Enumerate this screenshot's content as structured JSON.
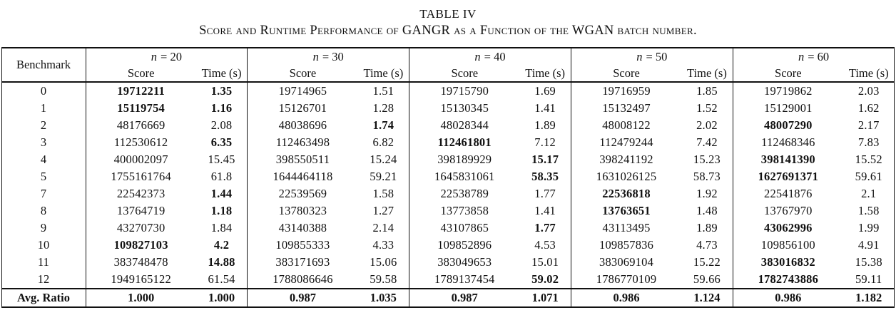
{
  "title": {
    "line1": "TABLE IV",
    "line2": "Score and Runtime Performance of GANGR as a Function of the WGAN batch number."
  },
  "table": {
    "benchmark_header": "Benchmark",
    "score_header": "Score",
    "time_header": "Time (s)",
    "groups": [
      {
        "var": "n",
        "eq": "= 20"
      },
      {
        "var": "n",
        "eq": "= 30"
      },
      {
        "var": "n",
        "eq": "= 40"
      },
      {
        "var": "n",
        "eq": "= 50"
      },
      {
        "var": "n",
        "eq": "= 60"
      }
    ],
    "rows": [
      {
        "benchmark": "0",
        "cells": [
          {
            "v": "19712211",
            "b": true
          },
          {
            "v": "1.35",
            "b": true
          },
          {
            "v": "19714965"
          },
          {
            "v": "1.51"
          },
          {
            "v": "19715790"
          },
          {
            "v": "1.69"
          },
          {
            "v": "19716959"
          },
          {
            "v": "1.85"
          },
          {
            "v": "19719862"
          },
          {
            "v": "2.03"
          }
        ]
      },
      {
        "benchmark": "1",
        "cells": [
          {
            "v": "15119754",
            "b": true
          },
          {
            "v": "1.16",
            "b": true
          },
          {
            "v": "15126701"
          },
          {
            "v": "1.28"
          },
          {
            "v": "15130345"
          },
          {
            "v": "1.41"
          },
          {
            "v": "15132497"
          },
          {
            "v": "1.52"
          },
          {
            "v": "15129001"
          },
          {
            "v": "1.62"
          }
        ]
      },
      {
        "benchmark": "2",
        "cells": [
          {
            "v": "48176669"
          },
          {
            "v": "2.08"
          },
          {
            "v": "48038696"
          },
          {
            "v": "1.74",
            "b": true
          },
          {
            "v": "48028344"
          },
          {
            "v": "1.89"
          },
          {
            "v": "48008122"
          },
          {
            "v": "2.02"
          },
          {
            "v": "48007290",
            "b": true
          },
          {
            "v": "2.17"
          }
        ]
      },
      {
        "benchmark": "3",
        "cells": [
          {
            "v": "112530612"
          },
          {
            "v": "6.35",
            "b": true
          },
          {
            "v": "112463498"
          },
          {
            "v": "6.82"
          },
          {
            "v": "112461801",
            "b": true
          },
          {
            "v": "7.12"
          },
          {
            "v": "112479244"
          },
          {
            "v": "7.42"
          },
          {
            "v": "112468346"
          },
          {
            "v": "7.83"
          }
        ]
      },
      {
        "benchmark": "4",
        "cells": [
          {
            "v": "400002097"
          },
          {
            "v": "15.45"
          },
          {
            "v": "398550511"
          },
          {
            "v": "15.24"
          },
          {
            "v": "398189929"
          },
          {
            "v": "15.17",
            "b": true
          },
          {
            "v": "398241192"
          },
          {
            "v": "15.23"
          },
          {
            "v": "398141390",
            "b": true
          },
          {
            "v": "15.52"
          }
        ]
      },
      {
        "benchmark": "5",
        "cells": [
          {
            "v": "1755161764"
          },
          {
            "v": "61.8"
          },
          {
            "v": "1644464118"
          },
          {
            "v": "59.21"
          },
          {
            "v": "1645831061"
          },
          {
            "v": "58.35",
            "b": true
          },
          {
            "v": "1631026125"
          },
          {
            "v": "58.73"
          },
          {
            "v": "1627691371",
            "b": true
          },
          {
            "v": "59.61"
          }
        ]
      },
      {
        "benchmark": "7",
        "cells": [
          {
            "v": "22542373"
          },
          {
            "v": "1.44",
            "b": true
          },
          {
            "v": "22539569"
          },
          {
            "v": "1.58"
          },
          {
            "v": "22538789"
          },
          {
            "v": "1.77"
          },
          {
            "v": "22536818",
            "b": true
          },
          {
            "v": "1.92"
          },
          {
            "v": "22541876"
          },
          {
            "v": "2.1"
          }
        ]
      },
      {
        "benchmark": "8",
        "cells": [
          {
            "v": "13764719"
          },
          {
            "v": "1.18",
            "b": true
          },
          {
            "v": "13780323"
          },
          {
            "v": "1.27"
          },
          {
            "v": "13773858"
          },
          {
            "v": "1.41"
          },
          {
            "v": "13763651",
            "b": true
          },
          {
            "v": "1.48"
          },
          {
            "v": "13767970"
          },
          {
            "v": "1.58"
          }
        ]
      },
      {
        "benchmark": "9",
        "cells": [
          {
            "v": "43270730"
          },
          {
            "v": "1.84"
          },
          {
            "v": "43140388"
          },
          {
            "v": "2.14"
          },
          {
            "v": "43107865"
          },
          {
            "v": "1.77",
            "b": true
          },
          {
            "v": "43113495"
          },
          {
            "v": "1.89"
          },
          {
            "v": "43062996",
            "b": true
          },
          {
            "v": "1.99"
          }
        ]
      },
      {
        "benchmark": "10",
        "cells": [
          {
            "v": "109827103",
            "b": true
          },
          {
            "v": "4.2",
            "b": true
          },
          {
            "v": "109855333"
          },
          {
            "v": "4.33"
          },
          {
            "v": "109852896"
          },
          {
            "v": "4.53"
          },
          {
            "v": "109857836"
          },
          {
            "v": "4.73"
          },
          {
            "v": "109856100"
          },
          {
            "v": "4.91"
          }
        ]
      },
      {
        "benchmark": "11",
        "cells": [
          {
            "v": "383748478"
          },
          {
            "v": "14.88",
            "b": true
          },
          {
            "v": "383171693"
          },
          {
            "v": "15.06"
          },
          {
            "v": "383049653"
          },
          {
            "v": "15.01"
          },
          {
            "v": "383069104"
          },
          {
            "v": "15.22"
          },
          {
            "v": "383016832",
            "b": true
          },
          {
            "v": "15.38"
          }
        ]
      },
      {
        "benchmark": "12",
        "cells": [
          {
            "v": "1949165122"
          },
          {
            "v": "61.54"
          },
          {
            "v": "1788086646"
          },
          {
            "v": "59.58"
          },
          {
            "v": "1789137454"
          },
          {
            "v": "59.02",
            "b": true
          },
          {
            "v": "1786770109"
          },
          {
            "v": "59.66"
          },
          {
            "v": "1782743886",
            "b": true
          },
          {
            "v": "59.11"
          }
        ]
      }
    ],
    "footer": {
      "label": "Avg. Ratio",
      "cells": [
        {
          "v": "1.000",
          "b": true
        },
        {
          "v": "1.000",
          "b": true
        },
        {
          "v": "0.987",
          "b": true
        },
        {
          "v": "1.035",
          "b": true
        },
        {
          "v": "0.987",
          "b": true
        },
        {
          "v": "1.071",
          "b": true
        },
        {
          "v": "0.986",
          "b": true
        },
        {
          "v": "1.124",
          "b": true
        },
        {
          "v": "0.986",
          "b": true
        },
        {
          "v": "1.182",
          "b": true
        }
      ]
    }
  }
}
